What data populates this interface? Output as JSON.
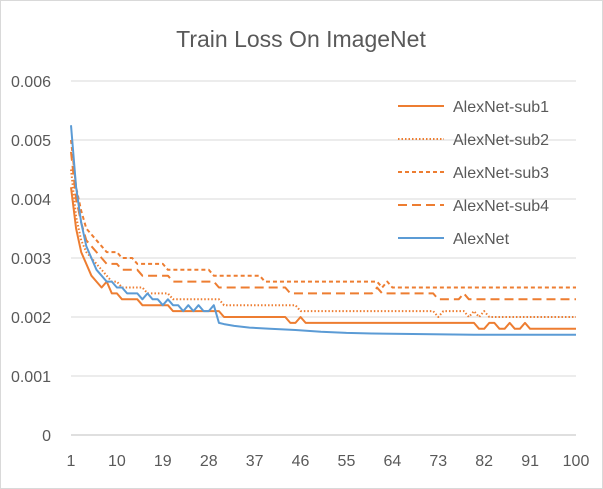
{
  "chart_data": {
    "type": "line",
    "title": "Train Loss On ImageNet",
    "xlabel": "",
    "ylabel": "",
    "xlim": [
      1,
      100
    ],
    "ylim": [
      0,
      0.006
    ],
    "x_tick_labels": [
      "1",
      "10",
      "19",
      "28",
      "37",
      "46",
      "55",
      "64",
      "73",
      "82",
      "91",
      "100"
    ],
    "y_tick_labels": [
      "0",
      "0.001",
      "0.002",
      "0.003",
      "0.004",
      "0.005",
      "0.006"
    ],
    "grid": "horizontal",
    "legend_position": "right",
    "series": [
      {
        "name": "AlexNet-sub1",
        "color": "#ed7d31",
        "dash": "solid",
        "points": [
          [
            1,
            0.0042
          ],
          [
            2,
            0.0035
          ],
          [
            3,
            0.0031
          ],
          [
            4,
            0.0029
          ],
          [
            5,
            0.0027
          ],
          [
            6,
            0.0026
          ],
          [
            7,
            0.0025
          ],
          [
            8,
            0.0026
          ],
          [
            9,
            0.0024
          ],
          [
            10,
            0.0024
          ],
          [
            11,
            0.0023
          ],
          [
            14,
            0.0023
          ],
          [
            15,
            0.0022
          ],
          [
            20,
            0.0022
          ],
          [
            21,
            0.0021
          ],
          [
            30,
            0.0021
          ],
          [
            31,
            0.002
          ],
          [
            43,
            0.002
          ],
          [
            44,
            0.0019
          ],
          [
            45,
            0.0019
          ],
          [
            46,
            0.002
          ],
          [
            47,
            0.0019
          ],
          [
            80,
            0.0019
          ],
          [
            81,
            0.0018
          ],
          [
            82,
            0.0018
          ],
          [
            83,
            0.0019
          ],
          [
            84,
            0.0019
          ],
          [
            85,
            0.0018
          ],
          [
            86,
            0.0018
          ],
          [
            87,
            0.0019
          ],
          [
            88,
            0.0018
          ],
          [
            89,
            0.0018
          ],
          [
            90,
            0.0019
          ],
          [
            91,
            0.0018
          ],
          [
            100,
            0.0018
          ]
        ]
      },
      {
        "name": "AlexNet-sub2",
        "color": "#ed7d31",
        "dash": "dotted",
        "points": [
          [
            1,
            0.0045
          ],
          [
            2,
            0.0037
          ],
          [
            3,
            0.0033
          ],
          [
            4,
            0.0031
          ],
          [
            5,
            0.003
          ],
          [
            6,
            0.0029
          ],
          [
            7,
            0.0028
          ],
          [
            8,
            0.0027
          ],
          [
            9,
            0.0026
          ],
          [
            10,
            0.0026
          ],
          [
            11,
            0.0025
          ],
          [
            15,
            0.0025
          ],
          [
            16,
            0.0024
          ],
          [
            20,
            0.0024
          ],
          [
            21,
            0.0023
          ],
          [
            30,
            0.0023
          ],
          [
            31,
            0.0022
          ],
          [
            45,
            0.0022
          ],
          [
            46,
            0.0021
          ],
          [
            72,
            0.0021
          ],
          [
            73,
            0.002
          ],
          [
            74,
            0.0021
          ],
          [
            78,
            0.0021
          ],
          [
            79,
            0.002
          ],
          [
            80,
            0.0021
          ],
          [
            81,
            0.002
          ],
          [
            82,
            0.0021
          ],
          [
            83,
            0.002
          ],
          [
            100,
            0.002
          ]
        ]
      },
      {
        "name": "AlexNet-sub3",
        "color": "#ed7d31",
        "dash": "dashed",
        "points": [
          [
            1,
            0.005
          ],
          [
            2,
            0.0042
          ],
          [
            3,
            0.0038
          ],
          [
            4,
            0.0035
          ],
          [
            5,
            0.0034
          ],
          [
            6,
            0.0033
          ],
          [
            7,
            0.0032
          ],
          [
            8,
            0.0031
          ],
          [
            10,
            0.0031
          ],
          [
            11,
            0.003
          ],
          [
            13,
            0.003
          ],
          [
            14,
            0.0029
          ],
          [
            19,
            0.0029
          ],
          [
            20,
            0.0028
          ],
          [
            28,
            0.0028
          ],
          [
            29,
            0.0027
          ],
          [
            38,
            0.0027
          ],
          [
            39,
            0.0026
          ],
          [
            61,
            0.0026
          ],
          [
            62,
            0.0025
          ],
          [
            63,
            0.0026
          ],
          [
            64,
            0.0025
          ],
          [
            100,
            0.0025
          ]
        ]
      },
      {
        "name": "AlexNet-sub4",
        "color": "#ed7d31",
        "dash": "long-dash",
        "points": [
          [
            1,
            0.0048
          ],
          [
            2,
            0.004
          ],
          [
            3,
            0.0036
          ],
          [
            4,
            0.0033
          ],
          [
            5,
            0.0032
          ],
          [
            6,
            0.0031
          ],
          [
            7,
            0.003
          ],
          [
            8,
            0.0029
          ],
          [
            10,
            0.0029
          ],
          [
            11,
            0.0028
          ],
          [
            14,
            0.0028
          ],
          [
            15,
            0.0027
          ],
          [
            20,
            0.0027
          ],
          [
            21,
            0.0026
          ],
          [
            29,
            0.0026
          ],
          [
            30,
            0.0025
          ],
          [
            43,
            0.0025
          ],
          [
            44,
            0.0024
          ],
          [
            60,
            0.0024
          ],
          [
            61,
            0.0025
          ],
          [
            62,
            0.0024
          ],
          [
            72,
            0.0024
          ],
          [
            73,
            0.0023
          ],
          [
            77,
            0.0023
          ],
          [
            78,
            0.0024
          ],
          [
            79,
            0.0023
          ],
          [
            100,
            0.0023
          ]
        ]
      },
      {
        "name": "AlexNet",
        "color": "#5b9bd5",
        "dash": "solid",
        "points": [
          [
            1,
            0.00525
          ],
          [
            2,
            0.0042
          ],
          [
            3,
            0.0036
          ],
          [
            4,
            0.0032
          ],
          [
            5,
            0.003
          ],
          [
            6,
            0.0028
          ],
          [
            7,
            0.0027
          ],
          [
            8,
            0.0026
          ],
          [
            9,
            0.0026
          ],
          [
            10,
            0.0025
          ],
          [
            11,
            0.0025
          ],
          [
            12,
            0.0024
          ],
          [
            13,
            0.0024
          ],
          [
            14,
            0.0024
          ],
          [
            15,
            0.0023
          ],
          [
            16,
            0.0024
          ],
          [
            17,
            0.0023
          ],
          [
            18,
            0.0023
          ],
          [
            19,
            0.0022
          ],
          [
            20,
            0.0023
          ],
          [
            21,
            0.0022
          ],
          [
            22,
            0.0022
          ],
          [
            23,
            0.0021
          ],
          [
            24,
            0.0022
          ],
          [
            25,
            0.0021
          ],
          [
            26,
            0.0022
          ],
          [
            27,
            0.0021
          ],
          [
            28,
            0.0021
          ],
          [
            29,
            0.0022
          ],
          [
            30,
            0.0019
          ],
          [
            31,
            0.00188
          ],
          [
            33,
            0.00185
          ],
          [
            36,
            0.00182
          ],
          [
            40,
            0.0018
          ],
          [
            45,
            0.00178
          ],
          [
            50,
            0.00175
          ],
          [
            55,
            0.00173
          ],
          [
            60,
            0.00172
          ],
          [
            70,
            0.00171
          ],
          [
            80,
            0.0017
          ],
          [
            100,
            0.0017
          ]
        ]
      }
    ]
  }
}
